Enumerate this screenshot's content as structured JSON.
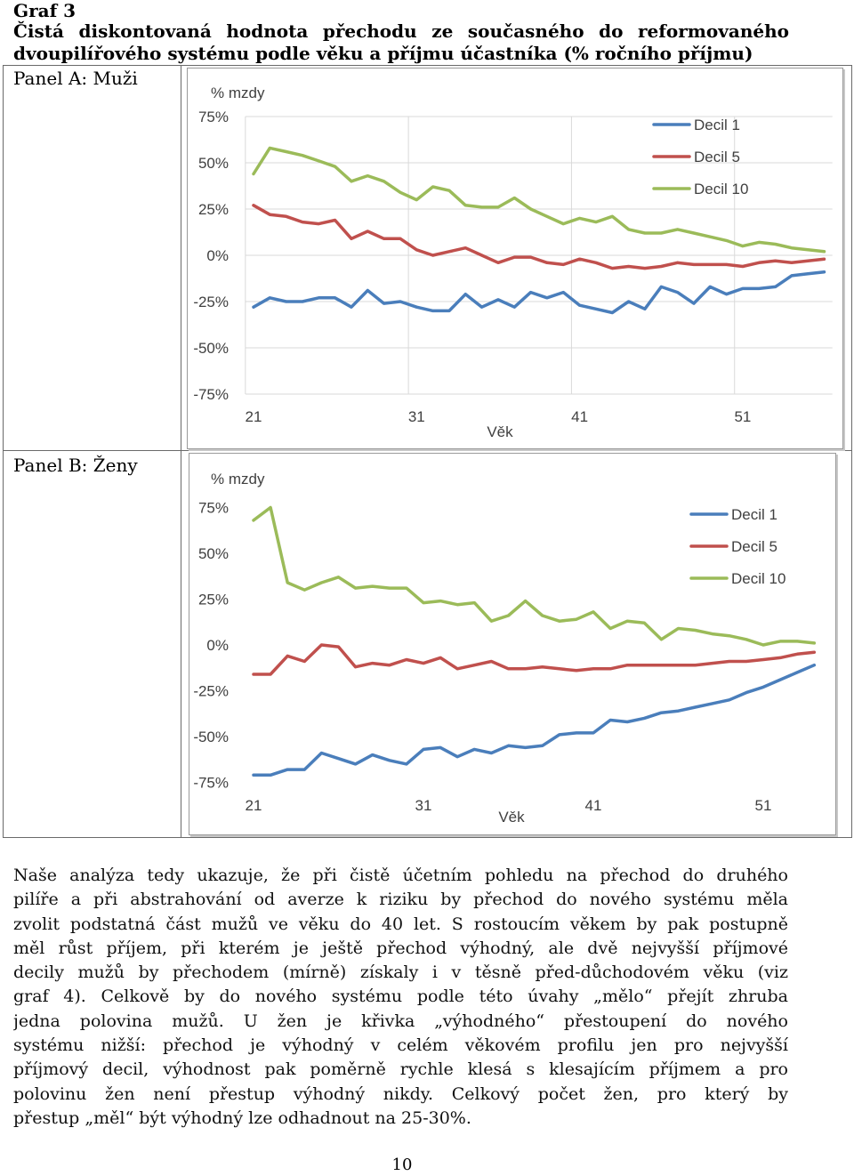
{
  "header": {
    "graf_label": "Graf 3",
    "title_lines": [
      "Čistá diskontovaná hodnota přechodu ze současného do reformovaného",
      "dvoupilířového systému podle věku a příjmu účastníka (% ročního příjmu)"
    ]
  },
  "colors": {
    "decil_1": "#4a7ebb",
    "decil_5": "#c0504d",
    "decil_10": "#9bbb59",
    "axis_text": "#404040",
    "grid": "#d9d9d9"
  },
  "chart_data": [
    {
      "type": "line",
      "title": "Panel A: Muži",
      "ylabel": "% mzdy",
      "xlabel": "Věk",
      "ylim": [
        -75,
        75
      ],
      "yticks": [
        75,
        50,
        25,
        0,
        -25,
        -50,
        -75
      ],
      "ytick_labels": [
        "75%",
        "50%",
        "25%",
        "0%",
        "-25%",
        "-50%",
        "-75%"
      ],
      "xticks": [
        21,
        31,
        41,
        51
      ],
      "xtick_labels": [
        "21",
        "31",
        "41",
        "51"
      ],
      "grid": true,
      "legend": "top-right",
      "x": [
        21,
        22,
        23,
        24,
        25,
        26,
        27,
        28,
        29,
        30,
        31,
        32,
        33,
        34,
        35,
        36,
        37,
        38,
        39,
        40,
        41,
        42,
        43,
        44,
        45,
        46,
        47,
        48,
        49,
        50,
        51,
        52,
        53,
        54,
        55,
        56
      ],
      "series": [
        {
          "name": "Decil 1",
          "color": "#4a7ebb",
          "values": [
            -28,
            -23,
            -25,
            -25,
            -23,
            -23,
            -28,
            -19,
            -26,
            -25,
            -28,
            -30,
            -30,
            -21,
            -28,
            -24,
            -28,
            -20,
            -23,
            -20,
            -27,
            -29,
            -31,
            -25,
            -29,
            -17,
            -20,
            -26,
            -17,
            -21,
            -18,
            -18,
            -17,
            -11,
            -10,
            -9
          ]
        },
        {
          "name": "Decil 5",
          "color": "#c0504d",
          "values": [
            27,
            22,
            21,
            18,
            17,
            19,
            9,
            13,
            9,
            9,
            3,
            0,
            2,
            4,
            0,
            -4,
            -1,
            -1,
            -4,
            -5,
            -2,
            -4,
            -7,
            -6,
            -7,
            -6,
            -4,
            -5,
            -5,
            -5,
            -6,
            -4,
            -3,
            -4,
            -3,
            -2
          ]
        },
        {
          "name": "Decil 10",
          "color": "#9bbb59",
          "values": [
            44,
            58,
            56,
            54,
            51,
            48,
            40,
            43,
            40,
            34,
            30,
            37,
            35,
            27,
            26,
            26,
            31,
            25,
            21,
            17,
            20,
            18,
            21,
            14,
            12,
            12,
            14,
            12,
            10,
            8,
            5,
            7,
            6,
            4,
            3,
            2
          ]
        }
      ]
    },
    {
      "type": "line",
      "title": "Panel B: Ženy",
      "ylabel": "% mzdy",
      "xlabel": "Věk",
      "ylim": [
        -75,
        75
      ],
      "yticks": [
        75,
        50,
        25,
        0,
        -25,
        -50,
        -75
      ],
      "ytick_labels": [
        "75%",
        "50%",
        "25%",
        "0%",
        "-25%",
        "-50%",
        "-75%"
      ],
      "xticks": [
        21,
        31,
        41,
        51
      ],
      "xtick_labels": [
        "21",
        "31",
        "41",
        "51"
      ],
      "grid": false,
      "legend": "top-right",
      "x": [
        21,
        22,
        23,
        24,
        25,
        26,
        27,
        28,
        29,
        30,
        31,
        32,
        33,
        34,
        35,
        36,
        37,
        38,
        39,
        40,
        41,
        42,
        43,
        44,
        45,
        46,
        47,
        48,
        49,
        50,
        51,
        52,
        53,
        54
      ],
      "series": [
        {
          "name": "Decil 1",
          "color": "#4a7ebb",
          "values": [
            -71,
            -71,
            -68,
            -68,
            -59,
            -62,
            -65,
            -60,
            -63,
            -65,
            -57,
            -56,
            -61,
            -57,
            -59,
            -55,
            -56,
            -55,
            -49,
            -48,
            -48,
            -41,
            -42,
            -40,
            -37,
            -36,
            -34,
            -32,
            -30,
            -26,
            -23,
            -19,
            -15,
            -11
          ]
        },
        {
          "name": "Decil 5",
          "color": "#c0504d",
          "values": [
            -16,
            -16,
            -6,
            -9,
            0,
            -1,
            -12,
            -10,
            -11,
            -8,
            -10,
            -7,
            -13,
            -11,
            -9,
            -13,
            -13,
            -12,
            -13,
            -14,
            -13,
            -13,
            -11,
            -11,
            -11,
            -11,
            -11,
            -10,
            -9,
            -9,
            -8,
            -7,
            -5,
            -4
          ]
        },
        {
          "name": "Decil 10",
          "color": "#9bbb59",
          "values": [
            68,
            75,
            34,
            30,
            34,
            37,
            31,
            32,
            31,
            31,
            23,
            24,
            22,
            23,
            13,
            16,
            24,
            16,
            13,
            14,
            18,
            9,
            13,
            12,
            3,
            9,
            8,
            6,
            5,
            3,
            0,
            2,
            2,
            1
          ]
        }
      ]
    }
  ],
  "body": {
    "paragraph_lines": [
      "Naše analýza tedy ukazuje, že při čistě účetním pohledu na přechod do druhého",
      "pilíře a při abstrahování od averze k riziku by přechod do nového systému měla",
      "zvolit podstatná část mužů ve věku do 40 let. S rostoucím věkem by pak postupně",
      "měl růst příjem, při kterém je ještě přechod výhodný, ale dvě nejvyšší příjmové",
      "decily mužů by přechodem (mírně) získaly i v těsně před-důchodovém věku (viz",
      "graf 4). Celkově by do nového systému podle této úvahy „mělo“ přejít zhruba",
      "jedna polovina mužů. U žen je křivka „výhodného“ přestoupení do nového",
      "systému nižší: přechod je výhodný v celém věkovém profilu jen pro nejvyšší",
      "příjmový decil, výhodnost pak poměrně rychle klesá s klesajícím příjmem a pro",
      "polovinu žen není přestup výhodný nikdy. Celkový počet žen, pro který by",
      "přestup „měl“ být výhodný lze odhadnout na 25-30%."
    ]
  },
  "page_number": "10"
}
